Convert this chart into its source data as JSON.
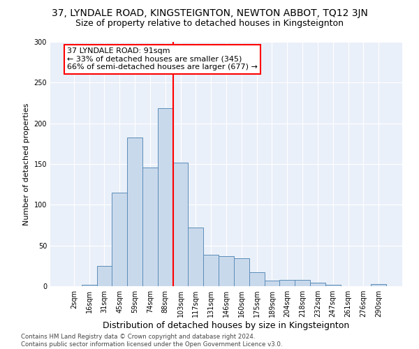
{
  "title1": "37, LYNDALE ROAD, KINGSTEIGNTON, NEWTON ABBOT, TQ12 3JN",
  "title2": "Size of property relative to detached houses in Kingsteignton",
  "xlabel": "Distribution of detached houses by size in Kingsteignton",
  "ylabel": "Number of detached properties",
  "footnote": "Contains HM Land Registry data © Crown copyright and database right 2024.\nContains public sector information licensed under the Open Government Licence v3.0.",
  "categories": [
    "2sqm",
    "16sqm",
    "31sqm",
    "45sqm",
    "59sqm",
    "74sqm",
    "88sqm",
    "103sqm",
    "117sqm",
    "131sqm",
    "146sqm",
    "160sqm",
    "175sqm",
    "189sqm",
    "204sqm",
    "218sqm",
    "232sqm",
    "247sqm",
    "261sqm",
    "276sqm",
    "290sqm"
  ],
  "values": [
    0,
    2,
    25,
    115,
    183,
    146,
    219,
    152,
    72,
    39,
    37,
    34,
    17,
    7,
    8,
    8,
    4,
    2,
    0,
    0,
    3
  ],
  "bar_color": "#c9d9ec",
  "bar_edge_color": "#5b8db8",
  "vline_color": "red",
  "vline_x": 6.5,
  "annotation_line1": "37 LYNDALE ROAD: 91sqm",
  "annotation_line2": "← 33% of detached houses are smaller (345)",
  "annotation_line3": "66% of semi-detached houses are larger (677) →",
  "annotation_box_color": "white",
  "annotation_box_edge_color": "red",
  "ylim": [
    0,
    300
  ],
  "yticks": [
    0,
    50,
    100,
    150,
    200,
    250,
    300
  ],
  "bg_color": "#eaf0f9",
  "grid_color": "white",
  "title1_fontsize": 10,
  "title2_fontsize": 9,
  "xlabel_fontsize": 9,
  "ylabel_fontsize": 8,
  "tick_fontsize": 7,
  "annotation_fontsize": 8
}
